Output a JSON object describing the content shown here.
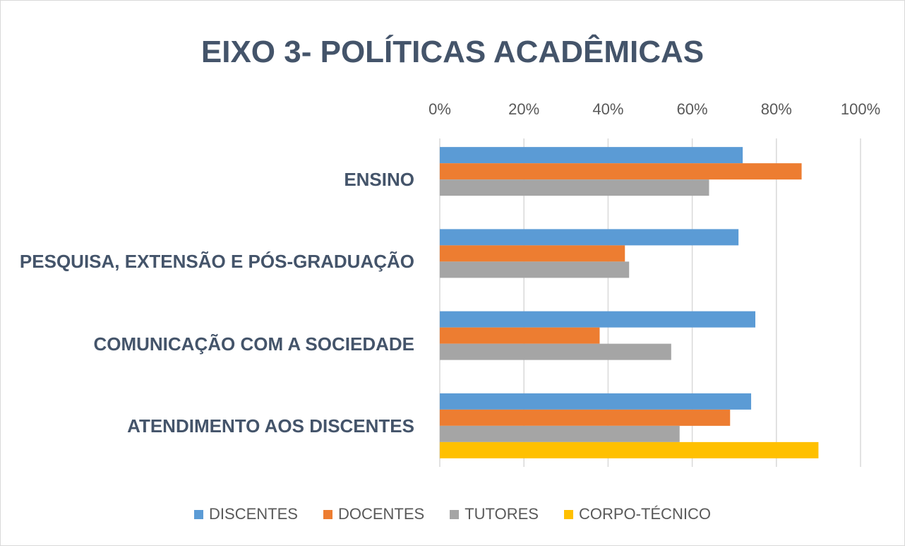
{
  "chart_data": {
    "type": "bar",
    "orientation": "horizontal",
    "title": "EIXO 3- POLÍTICAS ACADÊMICAS",
    "categories": [
      "ENSINO",
      "PESQUISA, EXTENSÃO E PÓS-GRADUAÇÃO",
      "COMUNICAÇÃO COM A SOCIEDADE",
      "ATENDIMENTO AOS DISCENTES"
    ],
    "series": [
      {
        "name": "DISCENTES",
        "color": "#5b9bd5",
        "values": [
          72,
          71,
          75,
          74
        ]
      },
      {
        "name": "DOCENTES",
        "color": "#ed7d31",
        "values": [
          86,
          44,
          38,
          69
        ]
      },
      {
        "name": "TUTORES",
        "color": "#a5a5a5",
        "values": [
          64,
          45,
          55,
          57
        ]
      },
      {
        "name": "CORPO-TÉCNICO",
        "color": "#ffc000",
        "values": [
          null,
          null,
          null,
          90
        ]
      }
    ],
    "xlim": [
      0,
      100
    ],
    "xticks": [
      {
        "value": 0,
        "label": "0%"
      },
      {
        "value": 20,
        "label": "20%"
      },
      {
        "value": 40,
        "label": "40%"
      },
      {
        "value": 60,
        "label": "60%"
      },
      {
        "value": 80,
        "label": "80%"
      },
      {
        "value": 100,
        "label": "100%"
      }
    ],
    "grid": true,
    "legend": "bottom"
  }
}
